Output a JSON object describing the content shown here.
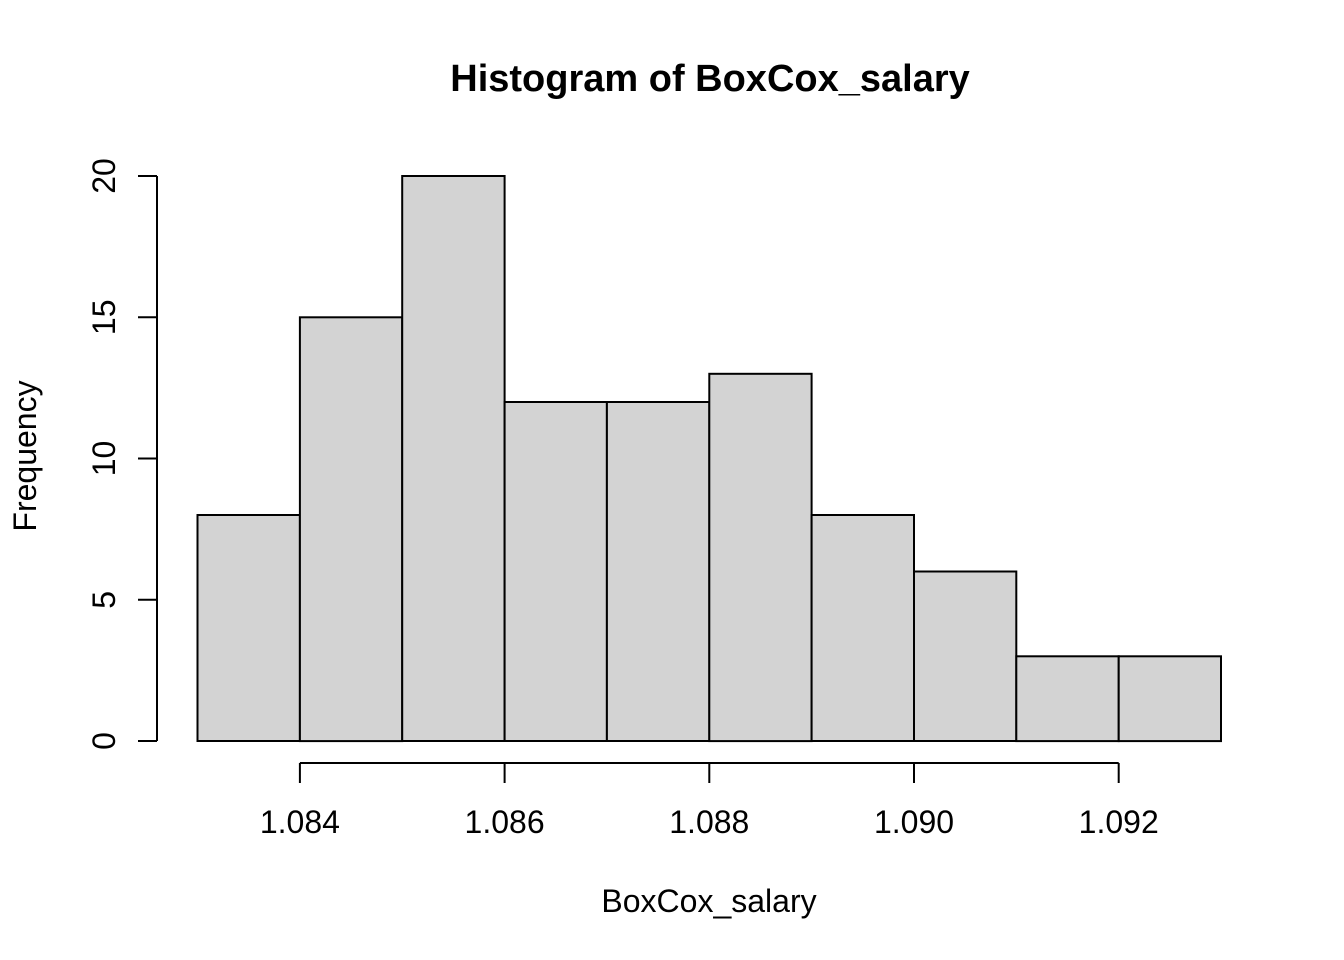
{
  "figure": {
    "background": "#ffffff"
  },
  "chart_data": {
    "type": "bar",
    "subtype": "histogram",
    "title": "Histogram of BoxCox_salary",
    "xlabel": "BoxCox_salary",
    "ylabel": "Frequency",
    "bin_edges": [
      1.083,
      1.084,
      1.085,
      1.086,
      1.087,
      1.088,
      1.089,
      1.09,
      1.091,
      1.092,
      1.093
    ],
    "counts": [
      8,
      15,
      20,
      12,
      12,
      13,
      8,
      6,
      3,
      3
    ],
    "total_n": 100,
    "xlim": [
      1.083,
      1.093
    ],
    "ylim": [
      0,
      20
    ],
    "x_ticks": [
      {
        "value": 1.084,
        "label": "1.084"
      },
      {
        "value": 1.086,
        "label": "1.086"
      },
      {
        "value": 1.088,
        "label": "1.088"
      },
      {
        "value": 1.09,
        "label": "1.090"
      },
      {
        "value": 1.092,
        "label": "1.092"
      }
    ],
    "y_ticks": [
      {
        "value": 0,
        "label": "0"
      },
      {
        "value": 5,
        "label": "5"
      },
      {
        "value": 10,
        "label": "10"
      },
      {
        "value": 15,
        "label": "15"
      },
      {
        "value": 20,
        "label": "20"
      }
    ],
    "grid": false,
    "legend": null,
    "style": {
      "bar_fill": "#d3d3d3",
      "bar_border": "#000000",
      "axis_color": "#000000",
      "text_color": "#000000",
      "background": "#ffffff"
    }
  }
}
